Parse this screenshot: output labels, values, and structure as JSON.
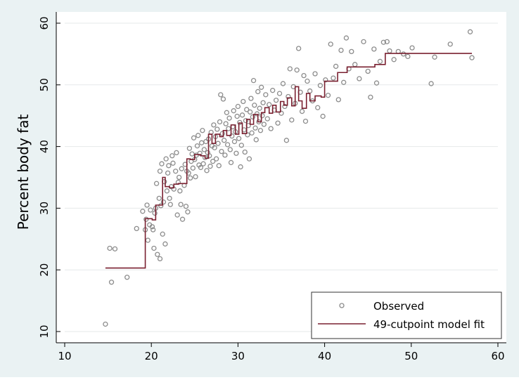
{
  "chart_data": {
    "type": "scatter",
    "title": "",
    "xlabel": "",
    "ylabel": "Percent body fat",
    "xlim": [
      10,
      60
    ],
    "ylim": [
      10,
      60
    ],
    "xticks": [
      10,
      20,
      30,
      40,
      50,
      60
    ],
    "yticks": [
      10,
      20,
      30,
      40,
      50,
      60
    ],
    "grid": true,
    "legend": {
      "position": "bottom-right",
      "entries": [
        "Observed",
        "49-cutpoint model fit"
      ]
    },
    "colors": {
      "points": "#8c8c8c",
      "fit": "#7a2030",
      "background": "#eaf2f3",
      "plot": "#ffffff"
    },
    "series": [
      {
        "name": "Observed",
        "kind": "scatter",
        "points": [
          [
            14.7,
            11.2
          ],
          [
            15.2,
            23.5
          ],
          [
            15.8,
            23.4
          ],
          [
            15.4,
            18.0
          ],
          [
            17.2,
            18.8
          ],
          [
            18.3,
            26.7
          ],
          [
            19.0,
            29.5
          ],
          [
            19.3,
            26.5
          ],
          [
            19.4,
            28.2
          ],
          [
            19.5,
            30.5
          ],
          [
            19.6,
            24.8
          ],
          [
            19.8,
            27.3
          ],
          [
            19.9,
            29.7
          ],
          [
            20.1,
            27.0
          ],
          [
            20.2,
            26.5
          ],
          [
            20.3,
            23.5
          ],
          [
            20.4,
            29.2
          ],
          [
            20.5,
            30.0
          ],
          [
            20.6,
            34.0
          ],
          [
            20.7,
            22.5
          ],
          [
            20.9,
            31.6
          ],
          [
            21.0,
            36.0
          ],
          [
            21.0,
            21.8
          ],
          [
            21.1,
            30.4
          ],
          [
            21.2,
            37.2
          ],
          [
            21.3,
            25.8
          ],
          [
            21.4,
            31.0
          ],
          [
            21.5,
            34.3
          ],
          [
            21.6,
            24.2
          ],
          [
            21.7,
            38.0
          ],
          [
            21.8,
            32.8
          ],
          [
            21.9,
            35.7
          ],
          [
            22.0,
            36.9
          ],
          [
            22.1,
            31.6
          ],
          [
            22.2,
            30.6
          ],
          [
            22.3,
            33.5
          ],
          [
            22.4,
            38.5
          ],
          [
            22.5,
            37.3
          ],
          [
            22.6,
            33.1
          ],
          [
            22.8,
            36.0
          ],
          [
            22.9,
            39.0
          ],
          [
            23.0,
            28.9
          ],
          [
            23.1,
            34.2
          ],
          [
            23.2,
            35.0
          ],
          [
            23.3,
            32.8
          ],
          [
            23.4,
            30.6
          ],
          [
            23.5,
            36.4
          ],
          [
            23.6,
            28.2
          ],
          [
            23.8,
            33.7
          ],
          [
            23.9,
            37.1
          ],
          [
            24.0,
            30.3
          ],
          [
            24.1,
            36.0
          ],
          [
            24.2,
            29.4
          ],
          [
            24.3,
            35.7
          ],
          [
            24.4,
            39.7
          ],
          [
            24.5,
            34.9
          ],
          [
            24.6,
            37.6
          ],
          [
            24.7,
            38.8
          ],
          [
            24.8,
            36.5
          ],
          [
            24.9,
            41.4
          ],
          [
            25.0,
            37.9
          ],
          [
            25.1,
            35.1
          ],
          [
            25.2,
            38.6
          ],
          [
            25.3,
            40.1
          ],
          [
            25.4,
            41.8
          ],
          [
            25.5,
            37.0
          ],
          [
            25.6,
            38.9
          ],
          [
            25.7,
            36.6
          ],
          [
            25.8,
            40.6
          ],
          [
            25.9,
            42.6
          ],
          [
            26.0,
            37.2
          ],
          [
            26.1,
            39.5
          ],
          [
            26.2,
            38.2
          ],
          [
            26.3,
            40.8
          ],
          [
            26.4,
            36.1
          ],
          [
            26.5,
            39.0
          ],
          [
            26.6,
            41.2
          ],
          [
            26.7,
            38.5
          ],
          [
            26.8,
            36.8
          ],
          [
            26.9,
            42.3
          ],
          [
            27.0,
            40.1
          ],
          [
            27.1,
            37.6
          ],
          [
            27.2,
            43.5
          ],
          [
            27.3,
            39.8
          ],
          [
            27.4,
            41.6
          ],
          [
            27.5,
            38.0
          ],
          [
            27.6,
            42.8
          ],
          [
            27.7,
            40.5
          ],
          [
            27.8,
            36.9
          ],
          [
            27.9,
            44.0
          ],
          [
            28.0,
            48.4
          ],
          [
            28.1,
            39.2
          ],
          [
            28.2,
            42.1
          ],
          [
            28.3,
            47.7
          ],
          [
            28.4,
            41.0
          ],
          [
            28.5,
            38.6
          ],
          [
            28.6,
            43.7
          ],
          [
            28.7,
            45.5
          ],
          [
            28.8,
            40.3
          ],
          [
            28.9,
            42.9
          ],
          [
            29.0,
            44.6
          ],
          [
            29.1,
            39.5
          ],
          [
            29.2,
            37.4
          ],
          [
            29.3,
            41.7
          ],
          [
            29.4,
            43.2
          ],
          [
            29.5,
            45.8
          ],
          [
            29.6,
            40.8
          ],
          [
            29.7,
            42.4
          ],
          [
            29.8,
            38.9
          ],
          [
            29.9,
            44.9
          ],
          [
            30.0,
            46.5
          ],
          [
            30.1,
            41.3
          ],
          [
            30.2,
            43.9
          ],
          [
            30.3,
            36.7
          ],
          [
            30.4,
            40.2
          ],
          [
            30.5,
            45.1
          ],
          [
            30.6,
            47.3
          ],
          [
            30.7,
            42.7
          ],
          [
            30.8,
            39.1
          ],
          [
            30.9,
            44.2
          ],
          [
            31.0,
            46.0
          ],
          [
            31.1,
            41.9
          ],
          [
            31.2,
            43.4
          ],
          [
            31.3,
            38.0
          ],
          [
            31.4,
            45.6
          ],
          [
            31.5,
            47.8
          ],
          [
            31.6,
            42.2
          ],
          [
            31.7,
            44.8
          ],
          [
            31.8,
            50.7
          ],
          [
            31.9,
            46.7
          ],
          [
            32.0,
            43.0
          ],
          [
            32.1,
            41.1
          ],
          [
            32.2,
            45.3
          ],
          [
            32.3,
            48.9
          ],
          [
            32.4,
            44.0
          ],
          [
            32.5,
            46.2
          ],
          [
            32.6,
            42.6
          ],
          [
            32.7,
            49.6
          ],
          [
            32.8,
            45.0
          ],
          [
            32.9,
            47.1
          ],
          [
            33.0,
            43.6
          ],
          [
            33.2,
            48.4
          ],
          [
            33.4,
            44.5
          ],
          [
            33.6,
            46.8
          ],
          [
            33.8,
            42.9
          ],
          [
            34.0,
            49.1
          ],
          [
            34.2,
            45.9
          ],
          [
            34.4,
            47.5
          ],
          [
            34.6,
            43.8
          ],
          [
            34.8,
            48.6
          ],
          [
            35.0,
            45.4
          ],
          [
            35.2,
            50.2
          ],
          [
            35.4,
            46.5
          ],
          [
            35.6,
            41.0
          ],
          [
            35.8,
            48.1
          ],
          [
            36.0,
            52.6
          ],
          [
            36.2,
            44.3
          ],
          [
            36.4,
            49.7
          ],
          [
            36.6,
            47.0
          ],
          [
            36.8,
            52.4
          ],
          [
            37.0,
            55.9
          ],
          [
            37.2,
            48.8
          ],
          [
            37.4,
            45.7
          ],
          [
            37.6,
            51.5
          ],
          [
            37.8,
            44.1
          ],
          [
            38.0,
            50.6
          ],
          [
            38.3,
            49.0
          ],
          [
            38.6,
            47.4
          ],
          [
            38.9,
            51.8
          ],
          [
            39.2,
            46.3
          ],
          [
            39.5,
            49.9
          ],
          [
            39.8,
            44.9
          ],
          [
            40.1,
            50.8
          ],
          [
            40.4,
            48.3
          ],
          [
            40.7,
            56.6
          ],
          [
            41.0,
            51.1
          ],
          [
            41.3,
            53.0
          ],
          [
            41.6,
            47.6
          ],
          [
            41.9,
            55.6
          ],
          [
            42.2,
            50.4
          ],
          [
            42.5,
            57.6
          ],
          [
            42.8,
            52.6
          ],
          [
            43.1,
            55.4
          ],
          [
            43.5,
            53.3
          ],
          [
            44.0,
            51.0
          ],
          [
            44.5,
            57.0
          ],
          [
            45.0,
            52.2
          ],
          [
            45.3,
            48.0
          ],
          [
            45.7,
            55.8
          ],
          [
            46.0,
            50.3
          ],
          [
            46.4,
            53.8
          ],
          [
            46.8,
            56.9
          ],
          [
            47.2,
            57.0
          ],
          [
            47.5,
            55.5
          ],
          [
            48.0,
            54.1
          ],
          [
            48.5,
            55.4
          ],
          [
            49.1,
            55.0
          ],
          [
            49.6,
            54.6
          ],
          [
            50.1,
            56.0
          ],
          [
            52.3,
            50.2
          ],
          [
            52.7,
            54.5
          ],
          [
            54.5,
            56.6
          ],
          [
            56.8,
            58.6
          ],
          [
            57.0,
            54.4
          ]
        ]
      },
      {
        "name": "49-cutpoint model fit",
        "kind": "step",
        "steps": [
          [
            14.7,
            20.3
          ],
          [
            19.3,
            28.3
          ],
          [
            20.1,
            28.1
          ],
          [
            20.5,
            30.5
          ],
          [
            21.3,
            35.0
          ],
          [
            21.6,
            33.5
          ],
          [
            22.1,
            33.3
          ],
          [
            22.6,
            33.9
          ],
          [
            23.1,
            34.0
          ],
          [
            24.1,
            38.0
          ],
          [
            24.5,
            37.9
          ],
          [
            25.0,
            38.7
          ],
          [
            25.7,
            38.5
          ],
          [
            26.2,
            38.1
          ],
          [
            26.6,
            42.0
          ],
          [
            27.0,
            40.5
          ],
          [
            27.4,
            42.0
          ],
          [
            27.9,
            41.6
          ],
          [
            28.3,
            42.6
          ],
          [
            28.7,
            41.8
          ],
          [
            29.2,
            43.5
          ],
          [
            29.7,
            42.0
          ],
          [
            30.1,
            43.8
          ],
          [
            30.5,
            42.1
          ],
          [
            31.0,
            44.4
          ],
          [
            31.4,
            43.6
          ],
          [
            31.8,
            45.2
          ],
          [
            32.3,
            44.0
          ],
          [
            32.7,
            45.5
          ],
          [
            33.1,
            46.3
          ],
          [
            33.6,
            45.4
          ],
          [
            34.0,
            46.7
          ],
          [
            34.4,
            45.6
          ],
          [
            34.9,
            47.3
          ],
          [
            35.3,
            46.7
          ],
          [
            35.7,
            47.9
          ],
          [
            36.2,
            46.6
          ],
          [
            36.6,
            49.7
          ],
          [
            37.0,
            47.4
          ],
          [
            37.4,
            46.2
          ],
          [
            37.9,
            48.6
          ],
          [
            38.3,
            47.4
          ],
          [
            38.9,
            48.2
          ],
          [
            39.6,
            48.0
          ],
          [
            40.0,
            50.6
          ],
          [
            41.5,
            52.0
          ],
          [
            42.6,
            52.9
          ],
          [
            45.8,
            53.3
          ],
          [
            47.0,
            55.1
          ],
          [
            57.0,
            55.1
          ]
        ]
      }
    ]
  }
}
